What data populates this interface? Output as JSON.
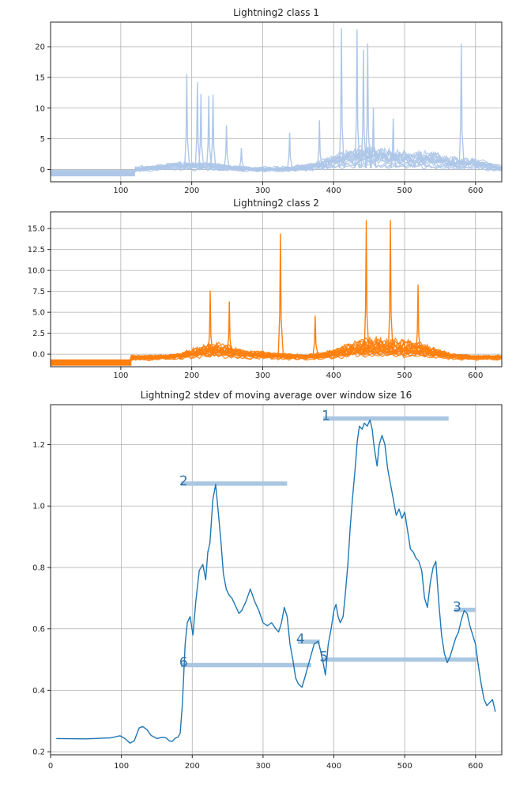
{
  "colors": {
    "class1": "#aec7e8",
    "class2": "#ff7f0e",
    "stdev": "#1f77b4",
    "band": "#aac7e2",
    "rank_text": "#2f72a8"
  },
  "chart_data": [
    {
      "type": "line",
      "title": "Lightning2 class 1",
      "xlim": [
        1,
        637
      ],
      "ylim": [
        -2,
        24
      ],
      "xticks": [
        100,
        200,
        300,
        400,
        500,
        600
      ],
      "yticks": [
        0,
        5,
        10,
        15,
        20
      ],
      "ytick_labels": [
        "0",
        "5",
        "10",
        "15",
        "20"
      ],
      "series_count": 15,
      "baseline": -0.6,
      "spikes": [
        {
          "x": 193,
          "y": 15.5
        },
        {
          "x": 208,
          "y": 14.2
        },
        {
          "x": 213,
          "y": 12.3
        },
        {
          "x": 224,
          "y": 12.0
        },
        {
          "x": 230,
          "y": 12.2
        },
        {
          "x": 249,
          "y": 7.2
        },
        {
          "x": 270,
          "y": 3.5
        },
        {
          "x": 338,
          "y": 6.0
        },
        {
          "x": 380,
          "y": 8.0
        },
        {
          "x": 411,
          "y": 23.0
        },
        {
          "x": 433,
          "y": 22.8
        },
        {
          "x": 442,
          "y": 19.5
        },
        {
          "x": 448,
          "y": 20.5
        },
        {
          "x": 456,
          "y": 10.0
        },
        {
          "x": 484,
          "y": 8.3
        },
        {
          "x": 580,
          "y": 20.5
        }
      ]
    },
    {
      "type": "line",
      "title": "Lightning2 class 2",
      "xlim": [
        1,
        637
      ],
      "ylim": [
        -1.5,
        17
      ],
      "xticks": [
        100,
        200,
        300,
        400,
        500,
        600
      ],
      "yticks": [
        0,
        2.5,
        5,
        7.5,
        10,
        12.5,
        15
      ],
      "ytick_labels": [
        "0.0",
        "2.5",
        "5.0",
        "7.5",
        "10.0",
        "12.5",
        "15.0"
      ],
      "series_count": 20,
      "baseline": -1.0,
      "spikes": [
        {
          "x": 226,
          "y": 7.6
        },
        {
          "x": 253,
          "y": 6.3
        },
        {
          "x": 325,
          "y": 14.4
        },
        {
          "x": 374,
          "y": 4.6
        },
        {
          "x": 446,
          "y": 16.0
        },
        {
          "x": 480,
          "y": 16.0
        },
        {
          "x": 519,
          "y": 8.3
        }
      ]
    },
    {
      "type": "line",
      "title": "Lightning2 stdev of moving average over window size 16",
      "xlim": [
        0,
        637
      ],
      "ylim": [
        0.19,
        1.33
      ],
      "xticks": [
        0,
        100,
        200,
        300,
        400,
        500,
        600
      ],
      "yticks": [
        0.2,
        0.4,
        0.6,
        0.8,
        1.0,
        1.2
      ],
      "ytick_labels": [
        "0.2",
        "0.4",
        "0.6",
        "0.8",
        "1.0",
        "1.2"
      ],
      "x": [
        8,
        50,
        85,
        98,
        105,
        112,
        118,
        125,
        130,
        136,
        142,
        150,
        158,
        163,
        168,
        172,
        176,
        180,
        183,
        186,
        188,
        190,
        193,
        197,
        201,
        205,
        210,
        215,
        219,
        222,
        225,
        229,
        233,
        236,
        240,
        244,
        248,
        252,
        256,
        262,
        266,
        270,
        276,
        282,
        288,
        294,
        300,
        306,
        312,
        318,
        322,
        326,
        330,
        334,
        338,
        342,
        346,
        350,
        355,
        360,
        366,
        372,
        378,
        384,
        388,
        392,
        396,
        400,
        403,
        406,
        409,
        413,
        416,
        420,
        423,
        426,
        430,
        433,
        436,
        440,
        443,
        447,
        451,
        454,
        457,
        461,
        464,
        468,
        472,
        476,
        480,
        484,
        488,
        492,
        496,
        500,
        504,
        508,
        512,
        516,
        520,
        524,
        528,
        532,
        536,
        540,
        544,
        548,
        552,
        556,
        560,
        564,
        568,
        572,
        576,
        580,
        584,
        588,
        592,
        596,
        600,
        604,
        608,
        612,
        616,
        620,
        624,
        628
      ],
      "y": [
        0.243,
        0.242,
        0.245,
        0.252,
        0.243,
        0.228,
        0.235,
        0.277,
        0.282,
        0.272,
        0.253,
        0.243,
        0.247,
        0.245,
        0.235,
        0.234,
        0.244,
        0.248,
        0.26,
        0.35,
        0.45,
        0.55,
        0.62,
        0.64,
        0.58,
        0.69,
        0.79,
        0.81,
        0.76,
        0.85,
        0.88,
        1.02,
        1.07,
        1.0,
        0.9,
        0.78,
        0.73,
        0.71,
        0.7,
        0.67,
        0.65,
        0.66,
        0.69,
        0.73,
        0.69,
        0.66,
        0.62,
        0.61,
        0.62,
        0.6,
        0.59,
        0.62,
        0.67,
        0.64,
        0.55,
        0.5,
        0.44,
        0.42,
        0.41,
        0.45,
        0.5,
        0.55,
        0.56,
        0.5,
        0.45,
        0.55,
        0.6,
        0.66,
        0.68,
        0.64,
        0.62,
        0.64,
        0.71,
        0.82,
        0.93,
        1.02,
        1.12,
        1.21,
        1.26,
        1.25,
        1.27,
        1.26,
        1.28,
        1.25,
        1.19,
        1.13,
        1.2,
        1.23,
        1.2,
        1.12,
        1.07,
        1.02,
        0.97,
        0.99,
        0.96,
        0.98,
        0.92,
        0.86,
        0.85,
        0.83,
        0.82,
        0.79,
        0.7,
        0.67,
        0.75,
        0.8,
        0.82,
        0.69,
        0.58,
        0.52,
        0.49,
        0.51,
        0.54,
        0.57,
        0.59,
        0.63,
        0.66,
        0.65,
        0.61,
        0.58,
        0.55,
        0.48,
        0.42,
        0.37,
        0.35,
        0.36,
        0.37,
        0.33
      ],
      "rank_labels": [
        {
          "label": "1",
          "x0": 385,
          "x1": 562,
          "y": 1.285
        },
        {
          "label": "2",
          "x0": 184,
          "x1": 334,
          "y": 1.073
        },
        {
          "label": "3",
          "x0": 570,
          "x1": 600,
          "y": 0.662
        },
        {
          "label": "4",
          "x0": 349,
          "x1": 380,
          "y": 0.558
        },
        {
          "label": "5",
          "x0": 382,
          "x1": 602,
          "y": 0.5
        },
        {
          "label": "6",
          "x0": 184,
          "x1": 368,
          "y": 0.482
        }
      ]
    }
  ]
}
